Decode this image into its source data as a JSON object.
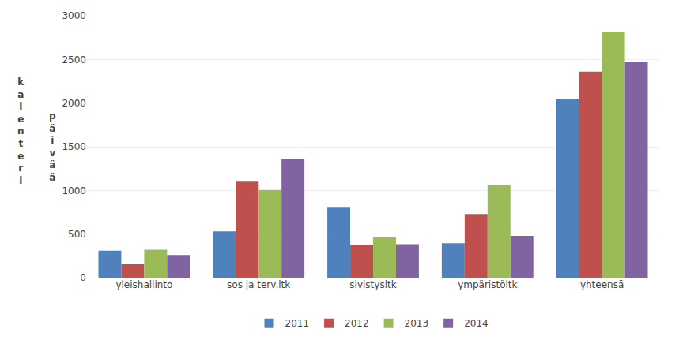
{
  "chart_data": {
    "type": "bar",
    "categories": [
      "yleishallinto",
      "sos ja terv.ltk",
      "sivistysltk",
      "ympäristöltk",
      "yhteensä"
    ],
    "series": [
      {
        "name": "2011",
        "color": "#4F81BD",
        "values": [
          310,
          530,
          810,
          395,
          2050
        ]
      },
      {
        "name": "2012",
        "color": "#C0504D",
        "values": [
          155,
          1100,
          380,
          730,
          2360
        ]
      },
      {
        "name": "2013",
        "color": "#9BBB59",
        "values": [
          320,
          1005,
          460,
          1060,
          2820
        ]
      },
      {
        "name": "2014",
        "color": "#8064A2",
        "values": [
          260,
          1355,
          385,
          480,
          2475
        ]
      }
    ],
    "ylim": [
      0,
      3000
    ],
    "yticks": [
      0,
      500,
      1000,
      1500,
      2000,
      2500,
      3000
    ],
    "grid": true,
    "legend": "bottom",
    "annotations": [
      "k\na\nl\ne\nn\nt\ne\nr\ni",
      "p\nä\ni\nv\nä\nä"
    ]
  }
}
